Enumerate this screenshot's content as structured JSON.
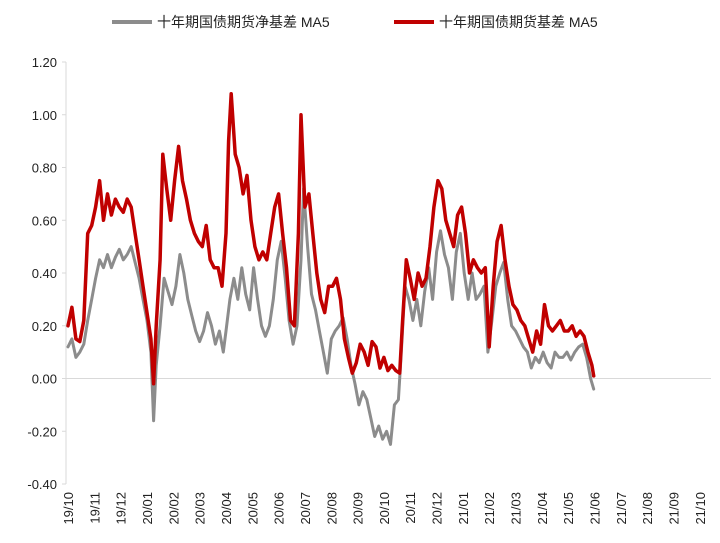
{
  "chart_data": {
    "type": "line",
    "title": "",
    "xlabel": "",
    "ylabel": "",
    "ylim": [
      -0.4,
      1.2
    ],
    "yticks": [
      "1.20",
      "1.00",
      "0.80",
      "0.60",
      "0.40",
      "0.20",
      "0.00",
      "-0.20",
      "-0.40"
    ],
    "ytick_values": [
      1.2,
      1.0,
      0.8,
      0.6,
      0.4,
      0.2,
      0.0,
      -0.2,
      -0.4
    ],
    "xticks": [
      "19/10",
      "19/11",
      "19/12",
      "20/01",
      "20/02",
      "20/03",
      "20/04",
      "20/05",
      "20/06",
      "20/07",
      "20/08",
      "20/09",
      "20/10",
      "20/11",
      "20/12",
      "21/01",
      "21/02",
      "21/03",
      "21/04",
      "21/05",
      "21/06",
      "21/07",
      "21/08",
      "21/09",
      "21/10"
    ],
    "grid": false,
    "legend_position": "top",
    "series": [
      {
        "name": "十年期国债期货净基差 MA5",
        "color": "#8c8c8c",
        "points": [
          [
            0.0,
            0.12
          ],
          [
            0.15,
            0.15
          ],
          [
            0.3,
            0.08
          ],
          [
            0.45,
            0.1
          ],
          [
            0.6,
            0.13
          ],
          [
            0.75,
            0.22
          ],
          [
            0.9,
            0.3
          ],
          [
            1.05,
            0.38
          ],
          [
            1.2,
            0.45
          ],
          [
            1.35,
            0.42
          ],
          [
            1.5,
            0.47
          ],
          [
            1.65,
            0.42
          ],
          [
            1.8,
            0.46
          ],
          [
            1.95,
            0.49
          ],
          [
            2.1,
            0.45
          ],
          [
            2.25,
            0.47
          ],
          [
            2.4,
            0.5
          ],
          [
            2.55,
            0.44
          ],
          [
            2.7,
            0.38
          ],
          [
            2.85,
            0.3
          ],
          [
            3.0,
            0.22
          ],
          [
            3.15,
            0.1
          ],
          [
            3.25,
            -0.16
          ],
          [
            3.35,
            0.05
          ],
          [
            3.5,
            0.2
          ],
          [
            3.65,
            0.38
          ],
          [
            3.8,
            0.33
          ],
          [
            3.95,
            0.28
          ],
          [
            4.1,
            0.35
          ],
          [
            4.25,
            0.47
          ],
          [
            4.4,
            0.4
          ],
          [
            4.55,
            0.3
          ],
          [
            4.7,
            0.24
          ],
          [
            4.85,
            0.18
          ],
          [
            5.0,
            0.14
          ],
          [
            5.15,
            0.18
          ],
          [
            5.3,
            0.25
          ],
          [
            5.45,
            0.2
          ],
          [
            5.6,
            0.13
          ],
          [
            5.75,
            0.18
          ],
          [
            5.9,
            0.1
          ],
          [
            6.0,
            0.18
          ],
          [
            6.15,
            0.3
          ],
          [
            6.3,
            0.38
          ],
          [
            6.45,
            0.3
          ],
          [
            6.6,
            0.42
          ],
          [
            6.75,
            0.32
          ],
          [
            6.9,
            0.26
          ],
          [
            7.05,
            0.42
          ],
          [
            7.2,
            0.3
          ],
          [
            7.35,
            0.2
          ],
          [
            7.5,
            0.16
          ],
          [
            7.65,
            0.2
          ],
          [
            7.8,
            0.3
          ],
          [
            7.95,
            0.45
          ],
          [
            8.1,
            0.52
          ],
          [
            8.25,
            0.38
          ],
          [
            8.4,
            0.22
          ],
          [
            8.55,
            0.13
          ],
          [
            8.7,
            0.2
          ],
          [
            8.85,
            0.45
          ],
          [
            8.95,
            0.72
          ],
          [
            9.1,
            0.5
          ],
          [
            9.25,
            0.32
          ],
          [
            9.4,
            0.26
          ],
          [
            9.55,
            0.18
          ],
          [
            9.7,
            0.1
          ],
          [
            9.85,
            0.02
          ],
          [
            10.0,
            0.15
          ],
          [
            10.15,
            0.18
          ],
          [
            10.3,
            0.2
          ],
          [
            10.45,
            0.23
          ],
          [
            10.6,
            0.15
          ],
          [
            10.75,
            0.05
          ],
          [
            10.9,
            -0.02
          ],
          [
            11.05,
            -0.1
          ],
          [
            11.2,
            -0.05
          ],
          [
            11.35,
            -0.08
          ],
          [
            11.5,
            -0.15
          ],
          [
            11.65,
            -0.22
          ],
          [
            11.8,
            -0.18
          ],
          [
            11.95,
            -0.23
          ],
          [
            12.1,
            -0.2
          ],
          [
            12.25,
            -0.25
          ],
          [
            12.4,
            -0.1
          ],
          [
            12.55,
            -0.08
          ],
          [
            12.65,
            0.08
          ],
          [
            12.8,
            0.35
          ],
          [
            12.95,
            0.3
          ],
          [
            13.1,
            0.22
          ],
          [
            13.25,
            0.3
          ],
          [
            13.4,
            0.2
          ],
          [
            13.55,
            0.33
          ],
          [
            13.7,
            0.42
          ],
          [
            13.85,
            0.3
          ],
          [
            14.0,
            0.48
          ],
          [
            14.15,
            0.56
          ],
          [
            14.3,
            0.47
          ],
          [
            14.45,
            0.42
          ],
          [
            14.6,
            0.3
          ],
          [
            14.75,
            0.48
          ],
          [
            14.9,
            0.55
          ],
          [
            15.05,
            0.4
          ],
          [
            15.2,
            0.3
          ],
          [
            15.35,
            0.4
          ],
          [
            15.5,
            0.3
          ],
          [
            15.65,
            0.32
          ],
          [
            15.8,
            0.35
          ],
          [
            15.95,
            0.1
          ],
          [
            16.1,
            0.22
          ],
          [
            16.25,
            0.35
          ],
          [
            16.4,
            0.4
          ],
          [
            16.55,
            0.44
          ],
          [
            16.7,
            0.3
          ],
          [
            16.85,
            0.2
          ],
          [
            17.0,
            0.18
          ],
          [
            17.15,
            0.15
          ],
          [
            17.3,
            0.12
          ],
          [
            17.45,
            0.1
          ],
          [
            17.6,
            0.04
          ],
          [
            17.75,
            0.08
          ],
          [
            17.9,
            0.06
          ],
          [
            18.05,
            0.1
          ],
          [
            18.2,
            0.06
          ],
          [
            18.35,
            0.04
          ],
          [
            18.5,
            0.1
          ],
          [
            18.65,
            0.08
          ],
          [
            18.8,
            0.08
          ],
          [
            18.95,
            0.1
          ],
          [
            19.1,
            0.07
          ],
          [
            19.25,
            0.1
          ],
          [
            19.4,
            0.12
          ],
          [
            19.55,
            0.13
          ],
          [
            19.7,
            0.08
          ],
          [
            19.85,
            0.0
          ],
          [
            19.97,
            -0.04
          ]
        ]
      },
      {
        "name": "十年期国债期货基差 MA5",
        "color": "#c00000",
        "points": [
          [
            0.0,
            0.2
          ],
          [
            0.15,
            0.27
          ],
          [
            0.3,
            0.15
          ],
          [
            0.45,
            0.14
          ],
          [
            0.6,
            0.22
          ],
          [
            0.75,
            0.55
          ],
          [
            0.9,
            0.58
          ],
          [
            1.05,
            0.65
          ],
          [
            1.2,
            0.75
          ],
          [
            1.35,
            0.6
          ],
          [
            1.5,
            0.7
          ],
          [
            1.65,
            0.62
          ],
          [
            1.8,
            0.68
          ],
          [
            1.95,
            0.65
          ],
          [
            2.1,
            0.63
          ],
          [
            2.25,
            0.68
          ],
          [
            2.4,
            0.65
          ],
          [
            2.55,
            0.55
          ],
          [
            2.7,
            0.45
          ],
          [
            2.85,
            0.35
          ],
          [
            3.0,
            0.25
          ],
          [
            3.15,
            0.15
          ],
          [
            3.25,
            -0.02
          ],
          [
            3.35,
            0.2
          ],
          [
            3.5,
            0.45
          ],
          [
            3.6,
            0.85
          ],
          [
            3.75,
            0.72
          ],
          [
            3.9,
            0.6
          ],
          [
            4.05,
            0.75
          ],
          [
            4.2,
            0.88
          ],
          [
            4.35,
            0.75
          ],
          [
            4.5,
            0.68
          ],
          [
            4.65,
            0.6
          ],
          [
            4.8,
            0.55
          ],
          [
            4.95,
            0.52
          ],
          [
            5.1,
            0.5
          ],
          [
            5.25,
            0.58
          ],
          [
            5.4,
            0.45
          ],
          [
            5.55,
            0.42
          ],
          [
            5.7,
            0.42
          ],
          [
            5.85,
            0.35
          ],
          [
            6.0,
            0.55
          ],
          [
            6.1,
            0.9
          ],
          [
            6.2,
            1.08
          ],
          [
            6.35,
            0.85
          ],
          [
            6.5,
            0.8
          ],
          [
            6.65,
            0.7
          ],
          [
            6.8,
            0.77
          ],
          [
            6.95,
            0.6
          ],
          [
            7.1,
            0.5
          ],
          [
            7.25,
            0.45
          ],
          [
            7.4,
            0.48
          ],
          [
            7.55,
            0.45
          ],
          [
            7.7,
            0.55
          ],
          [
            7.85,
            0.65
          ],
          [
            8.0,
            0.7
          ],
          [
            8.15,
            0.55
          ],
          [
            8.3,
            0.42
          ],
          [
            8.45,
            0.22
          ],
          [
            8.6,
            0.2
          ],
          [
            8.75,
            0.55
          ],
          [
            8.85,
            1.0
          ],
          [
            9.0,
            0.65
          ],
          [
            9.15,
            0.7
          ],
          [
            9.3,
            0.55
          ],
          [
            9.45,
            0.4
          ],
          [
            9.6,
            0.3
          ],
          [
            9.75,
            0.25
          ],
          [
            9.9,
            0.35
          ],
          [
            10.05,
            0.35
          ],
          [
            10.2,
            0.38
          ],
          [
            10.35,
            0.3
          ],
          [
            10.5,
            0.15
          ],
          [
            10.65,
            0.08
          ],
          [
            10.8,
            0.02
          ],
          [
            10.95,
            0.06
          ],
          [
            11.1,
            0.13
          ],
          [
            11.25,
            0.1
          ],
          [
            11.4,
            0.05
          ],
          [
            11.55,
            0.14
          ],
          [
            11.7,
            0.12
          ],
          [
            11.85,
            0.04
          ],
          [
            12.0,
            0.08
          ],
          [
            12.15,
            0.03
          ],
          [
            12.3,
            0.05
          ],
          [
            12.45,
            0.03
          ],
          [
            12.6,
            0.02
          ],
          [
            12.7,
            0.2
          ],
          [
            12.85,
            0.45
          ],
          [
            13.0,
            0.38
          ],
          [
            13.15,
            0.3
          ],
          [
            13.3,
            0.4
          ],
          [
            13.45,
            0.35
          ],
          [
            13.6,
            0.38
          ],
          [
            13.75,
            0.5
          ],
          [
            13.9,
            0.65
          ],
          [
            14.05,
            0.75
          ],
          [
            14.2,
            0.72
          ],
          [
            14.35,
            0.6
          ],
          [
            14.5,
            0.55
          ],
          [
            14.65,
            0.5
          ],
          [
            14.8,
            0.62
          ],
          [
            14.95,
            0.65
          ],
          [
            15.1,
            0.55
          ],
          [
            15.25,
            0.4
          ],
          [
            15.4,
            0.45
          ],
          [
            15.55,
            0.42
          ],
          [
            15.7,
            0.4
          ],
          [
            15.85,
            0.42
          ],
          [
            16.0,
            0.12
          ],
          [
            16.15,
            0.35
          ],
          [
            16.3,
            0.52
          ],
          [
            16.45,
            0.58
          ],
          [
            16.6,
            0.45
          ],
          [
            16.75,
            0.35
          ],
          [
            16.9,
            0.28
          ],
          [
            17.05,
            0.26
          ],
          [
            17.2,
            0.22
          ],
          [
            17.35,
            0.2
          ],
          [
            17.5,
            0.15
          ],
          [
            17.65,
            0.1
          ],
          [
            17.8,
            0.18
          ],
          [
            17.95,
            0.13
          ],
          [
            18.1,
            0.28
          ],
          [
            18.25,
            0.2
          ],
          [
            18.4,
            0.18
          ],
          [
            18.55,
            0.2
          ],
          [
            18.7,
            0.22
          ],
          [
            18.85,
            0.18
          ],
          [
            19.0,
            0.18
          ],
          [
            19.15,
            0.2
          ],
          [
            19.3,
            0.16
          ],
          [
            19.45,
            0.18
          ],
          [
            19.6,
            0.16
          ],
          [
            19.75,
            0.1
          ],
          [
            19.9,
            0.05
          ],
          [
            19.97,
            0.01
          ]
        ]
      }
    ]
  }
}
